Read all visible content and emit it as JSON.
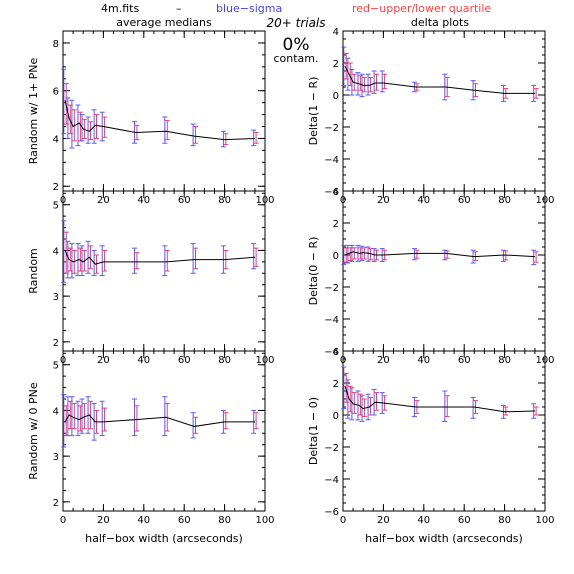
{
  "header": {
    "file": "4m.fits",
    "dash": "–",
    "blue_label": "blue−sigma",
    "red_label": "red−upper/lower quartile",
    "left_title": "average medians",
    "right_title": "delta plots",
    "trials": "20+ trials",
    "contam_pct": "0%",
    "contam_word": "contam."
  },
  "colors": {
    "line": "#000000",
    "blue": "#5a5aff",
    "red": "#e0407a",
    "blue_text": "#4040ff",
    "red_text": "#ff4040"
  },
  "chart_data": [
    {
      "type": "line",
      "panel": "left-top",
      "ylabel": "Random w/ 1+ PNe",
      "xlabel": "",
      "xlim": [
        0,
        100
      ],
      "ylim": [
        1.8,
        8.5
      ],
      "xticks": [
        0,
        20,
        40,
        60,
        80,
        100
      ],
      "xticklabels": [
        "0",
        "20",
        "40",
        "60",
        "80",
        "100"
      ],
      "yticks": [
        2,
        4,
        6,
        8
      ],
      "yticklabels": [
        "2",
        "4",
        "6",
        "8"
      ],
      "x": [
        1,
        3,
        5,
        8,
        10,
        13,
        16,
        20,
        36,
        51,
        65,
        80,
        95
      ],
      "y": [
        5.6,
        4.85,
        4.5,
        4.65,
        4.4,
        4.3,
        4.55,
        4.5,
        4.25,
        4.3,
        4.1,
        3.95,
        4.0
      ],
      "sigma_lo": [
        4.2,
        4.0,
        3.6,
        3.7,
        3.9,
        3.8,
        3.8,
        3.9,
        3.8,
        3.8,
        3.7,
        3.65,
        3.7
      ],
      "sigma_hi": [
        6.9,
        5.7,
        5.6,
        5.4,
        5.0,
        4.9,
        5.2,
        5.1,
        4.7,
        4.9,
        4.6,
        4.3,
        4.35
      ],
      "quart_lo": [
        4.6,
        4.2,
        3.9,
        3.9,
        4.0,
        3.95,
        4.0,
        4.05,
        3.95,
        3.95,
        3.8,
        3.75,
        3.8
      ],
      "quart_hi": [
        6.3,
        5.4,
        5.2,
        5.1,
        4.8,
        4.7,
        5.0,
        4.9,
        4.55,
        4.75,
        4.5,
        4.2,
        4.25
      ]
    },
    {
      "type": "line",
      "panel": "right-top",
      "ylabel": "Delta(1 − R)",
      "xlabel": "",
      "xlim": [
        0,
        100
      ],
      "ylim": [
        -6,
        4
      ],
      "xticks": [
        0,
        20,
        40,
        60,
        80,
        100
      ],
      "xticklabels": [
        "0",
        "20",
        "40",
        "60",
        "80",
        "100"
      ],
      "yticks": [
        -6,
        -4,
        -2,
        0,
        2,
        4
      ],
      "yticklabels": [
        "−6",
        "−4",
        "−2",
        "0",
        "2",
        "4"
      ],
      "x": [
        1,
        3,
        5,
        8,
        10,
        13,
        16,
        20,
        36,
        51,
        65,
        80,
        95
      ],
      "y": [
        1.8,
        1.3,
        0.8,
        0.7,
        0.6,
        0.6,
        0.75,
        0.75,
        0.5,
        0.5,
        0.3,
        0.1,
        0.1
      ],
      "sigma_lo": [
        0.6,
        0.3,
        0.0,
        0.0,
        -0.1,
        0.0,
        0.1,
        0.2,
        0.2,
        -0.3,
        -0.3,
        -0.4,
        -0.4
      ],
      "sigma_hi": [
        3.0,
        2.3,
        1.6,
        1.4,
        1.3,
        1.3,
        1.5,
        1.5,
        0.8,
        1.3,
        0.9,
        0.6,
        0.6
      ],
      "quart_lo": [
        1.0,
        0.6,
        0.3,
        0.3,
        0.2,
        0.2,
        0.3,
        0.4,
        0.3,
        -0.1,
        -0.1,
        -0.2,
        -0.2
      ],
      "quart_hi": [
        2.6,
        2.0,
        1.3,
        1.2,
        1.1,
        1.1,
        1.3,
        1.3,
        0.7,
        1.1,
        0.7,
        0.4,
        0.4
      ]
    },
    {
      "type": "line",
      "panel": "left-middle",
      "ylabel": "Random",
      "xlabel": "",
      "xlim": [
        0,
        100
      ],
      "ylim": [
        1.8,
        5.3
      ],
      "xticks": [
        0,
        20,
        40,
        60,
        80,
        100
      ],
      "xticklabels": [
        "0",
        "20",
        "40",
        "60",
        "80",
        "100"
      ],
      "yticks": [
        2,
        3,
        4,
        5
      ],
      "yticklabels": [
        "2",
        "3",
        "4",
        "5"
      ],
      "x": [
        1,
        3,
        5,
        8,
        10,
        13,
        16,
        20,
        36,
        51,
        65,
        80,
        95
      ],
      "y": [
        4.0,
        3.8,
        3.75,
        3.8,
        3.75,
        3.85,
        3.7,
        3.75,
        3.75,
        3.75,
        3.8,
        3.8,
        3.85
      ],
      "sigma_lo": [
        3.3,
        3.4,
        3.4,
        3.45,
        3.45,
        3.5,
        3.45,
        3.45,
        3.5,
        3.45,
        3.5,
        3.5,
        3.6
      ],
      "sigma_hi": [
        4.65,
        4.2,
        4.15,
        4.15,
        4.1,
        4.2,
        4.0,
        4.1,
        4.05,
        4.1,
        4.15,
        4.1,
        4.15
      ],
      "quart_lo": [
        3.5,
        3.55,
        3.5,
        3.55,
        3.55,
        3.6,
        3.5,
        3.55,
        3.6,
        3.55,
        3.6,
        3.6,
        3.65
      ],
      "quart_hi": [
        4.4,
        4.05,
        4.0,
        4.05,
        4.0,
        4.1,
        3.9,
        4.0,
        3.95,
        4.0,
        4.05,
        4.0,
        4.05
      ]
    },
    {
      "type": "line",
      "panel": "right-middle",
      "ylabel": "Delta(0 − R)",
      "xlabel": "",
      "xlim": [
        0,
        100
      ],
      "ylim": [
        -6,
        4
      ],
      "xticks": [
        0,
        20,
        40,
        60,
        80,
        100
      ],
      "xticklabels": [
        "0",
        "20",
        "40",
        "60",
        "80",
        "100"
      ],
      "yticks": [
        -6,
        -4,
        -2,
        0,
        2,
        4
      ],
      "yticklabels": [
        "−6",
        "−4",
        "−2",
        "0",
        "2",
        "4"
      ],
      "x": [
        1,
        3,
        5,
        8,
        10,
        13,
        16,
        20,
        36,
        51,
        65,
        80,
        95
      ],
      "y": [
        0.0,
        0.1,
        0.2,
        0.1,
        0.15,
        0.1,
        0.0,
        0.0,
        0.1,
        0.1,
        -0.1,
        0.0,
        -0.1
      ],
      "sigma_lo": [
        -0.6,
        -0.5,
        -0.4,
        -0.4,
        -0.35,
        -0.4,
        -0.4,
        -0.4,
        -0.3,
        -0.3,
        -0.5,
        -0.4,
        -0.6
      ],
      "sigma_hi": [
        0.6,
        0.6,
        0.6,
        0.6,
        0.55,
        0.5,
        0.4,
        0.4,
        0.4,
        0.3,
        0.3,
        0.3,
        0.3
      ],
      "quart_lo": [
        -0.45,
        -0.35,
        -0.25,
        -0.25,
        -0.25,
        -0.3,
        -0.3,
        -0.3,
        -0.2,
        -0.2,
        -0.35,
        -0.3,
        -0.45
      ],
      "quart_hi": [
        0.45,
        0.45,
        0.45,
        0.45,
        0.45,
        0.4,
        0.3,
        0.3,
        0.3,
        0.25,
        0.2,
        0.25,
        0.2
      ]
    },
    {
      "type": "line",
      "panel": "left-bottom",
      "ylabel": "Random w/ 0 PNe",
      "xlabel": "half−box width (arcseconds)",
      "xlim": [
        0,
        100
      ],
      "ylim": [
        1.8,
        5.3
      ],
      "xticks": [
        0,
        20,
        40,
        60,
        80,
        100
      ],
      "xticklabels": [
        "0",
        "20",
        "40",
        "60",
        "80",
        "100"
      ],
      "yticks": [
        2,
        3,
        4,
        5
      ],
      "yticklabels": [
        "2",
        "3",
        "4",
        "5"
      ],
      "x": [
        1,
        3,
        5,
        8,
        10,
        13,
        16,
        20,
        36,
        51,
        65,
        80,
        95
      ],
      "y": [
        3.75,
        3.9,
        3.85,
        3.8,
        3.85,
        3.9,
        3.75,
        3.75,
        3.8,
        3.85,
        3.65,
        3.75,
        3.75
      ],
      "sigma_lo": [
        3.2,
        3.45,
        3.45,
        3.45,
        3.5,
        3.5,
        3.35,
        3.45,
        3.45,
        3.45,
        3.4,
        3.5,
        3.5
      ],
      "sigma_hi": [
        4.35,
        4.3,
        4.3,
        4.2,
        4.25,
        4.3,
        4.15,
        4.2,
        4.25,
        4.3,
        3.95,
        4.0,
        4.0
      ],
      "quart_lo": [
        3.45,
        3.6,
        3.6,
        3.55,
        3.6,
        3.6,
        3.5,
        3.55,
        3.55,
        3.55,
        3.5,
        3.6,
        3.6
      ],
      "quart_hi": [
        4.1,
        4.2,
        4.15,
        4.1,
        4.15,
        4.2,
        4.0,
        4.05,
        4.1,
        4.15,
        3.85,
        3.95,
        3.95
      ]
    },
    {
      "type": "line",
      "panel": "right-bottom",
      "ylabel": "Delta(1 − 0)",
      "xlabel": "half−box width (arcseconds)",
      "xlim": [
        0,
        100
      ],
      "ylim": [
        -6,
        4
      ],
      "xticks": [
        0,
        20,
        40,
        60,
        80,
        100
      ],
      "xticklabels": [
        "0",
        "20",
        "40",
        "60",
        "80",
        "100"
      ],
      "yticks": [
        -6,
        -4,
        -2,
        0,
        2,
        4
      ],
      "yticklabels": [
        "−6",
        "−4",
        "−2",
        "0",
        "2",
        "4"
      ],
      "x": [
        1,
        3,
        5,
        8,
        10,
        13,
        16,
        20,
        36,
        51,
        65,
        80,
        95
      ],
      "y": [
        1.8,
        1.0,
        0.7,
        0.6,
        0.4,
        0.5,
        0.8,
        0.75,
        0.5,
        0.5,
        0.5,
        0.2,
        0.25
      ],
      "sigma_lo": [
        0.4,
        -0.2,
        -0.3,
        -0.3,
        -0.4,
        -0.3,
        0.0,
        0.1,
        -0.1,
        -0.4,
        -0.2,
        -0.2,
        -0.2
      ],
      "sigma_hi": [
        3.0,
        2.2,
        1.7,
        1.5,
        1.2,
        1.3,
        1.6,
        1.4,
        1.1,
        1.5,
        1.1,
        0.6,
        0.7
      ],
      "quart_lo": [
        0.8,
        0.2,
        0.1,
        0.0,
        -0.1,
        0.0,
        0.3,
        0.3,
        0.1,
        -0.1,
        0.1,
        0.0,
        0.0
      ],
      "quart_hi": [
        2.6,
        1.8,
        1.4,
        1.3,
        1.0,
        1.1,
        1.4,
        1.2,
        0.9,
        1.2,
        0.9,
        0.5,
        0.5
      ]
    }
  ]
}
